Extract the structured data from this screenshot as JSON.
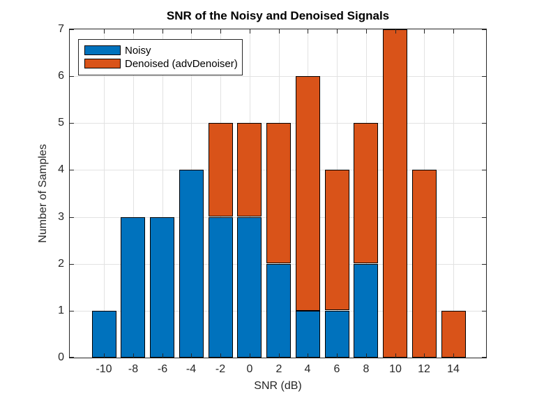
{
  "chart_data": {
    "type": "bar",
    "stacked": true,
    "title": "SNR of the Noisy and Denoised Signals",
    "xlabel": "SNR (dB)",
    "ylabel": "Number of Samples",
    "categories": [
      -10,
      -8,
      -6,
      -4,
      -2,
      0,
      2,
      4,
      6,
      8,
      10,
      12,
      14
    ],
    "series": [
      {
        "name": "Noisy",
        "color": "#0072BD",
        "values": [
          1,
          3,
          3,
          4,
          3,
          3,
          2,
          1,
          1,
          2,
          0,
          0,
          0
        ]
      },
      {
        "name": "Denoised (advDenoiser)",
        "color": "#D95319",
        "values": [
          0,
          0,
          0,
          0,
          2,
          2,
          3,
          5,
          3,
          3,
          7,
          4,
          1
        ]
      }
    ],
    "stack_totals": [
      1,
      3,
      3,
      4,
      5,
      5,
      5,
      6,
      4,
      5,
      7,
      4,
      1
    ],
    "xlim": [
      -12.35,
      16.25
    ],
    "ylim": [
      0,
      7
    ],
    "xticks": [
      -10,
      -8,
      -6,
      -4,
      -2,
      0,
      2,
      4,
      6,
      8,
      10,
      12,
      14
    ],
    "yticks": [
      0,
      1,
      2,
      3,
      4,
      5,
      6,
      7
    ],
    "grid": true,
    "legend_position": "top-left-inside",
    "colors": {
      "axis": "#262626",
      "grid": "#e2e2e2",
      "bar_edge": "#000000",
      "background": "#ffffff"
    }
  }
}
